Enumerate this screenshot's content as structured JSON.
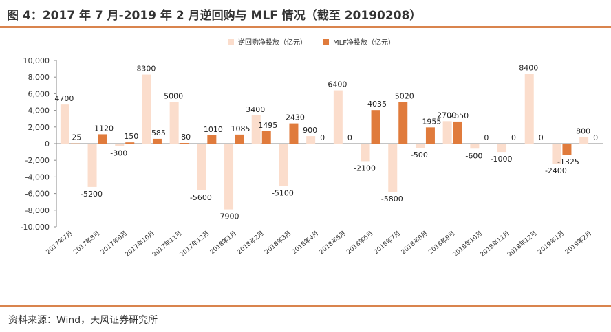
{
  "header": {
    "title": "图 4：2017 年 7 月-2019 年 2 月逆回购与 MLF 情况（截至 20190208）"
  },
  "footer": {
    "source": "资料来源：Wind，天风证券研究所"
  },
  "colors": {
    "accent": "#d9844e",
    "series1": "#fbddcc",
    "series2": "#e07b3c"
  },
  "chart_data": {
    "type": "bar",
    "title": "",
    "xlabel": "",
    "ylabel": "",
    "ylim": [
      -10000,
      10000
    ],
    "yticks": [
      "10,000",
      "8,000",
      "6,000",
      "4,000",
      "2,000",
      "0",
      "-2,000",
      "-4,000",
      "-6,000",
      "-8,000",
      "-10,000"
    ],
    "ytick_values": [
      10000,
      8000,
      6000,
      4000,
      2000,
      0,
      -2000,
      -4000,
      -6000,
      -8000,
      -10000
    ],
    "legend_position": "top",
    "categories": [
      "2017年7月",
      "2017年8月",
      "2017年9月",
      "2017年10月",
      "2017年11月",
      "2017年12月",
      "2018年1月",
      "2018年2月",
      "2018年3月",
      "2018年4月",
      "2018年5月",
      "2018年6月",
      "2018年7月",
      "2018年8月",
      "2018年9月",
      "2018年10月",
      "2018年11月",
      "2018年12月",
      "2019年1月",
      "2019年2月"
    ],
    "series": [
      {
        "name": "逆回购净投放（亿元）",
        "values": [
          4700,
          -5200,
          -300,
          8300,
          5000,
          -5600,
          -7900,
          3400,
          -5100,
          900,
          6400,
          -2100,
          -5800,
          -500,
          2700,
          -600,
          -1000,
          8400,
          -2400,
          800
        ]
      },
      {
        "name": "MLF净投放（亿元）",
        "values": [
          25,
          1120,
          150,
          585,
          80,
          1010,
          1085,
          1495,
          2430,
          0,
          0,
          4035,
          5020,
          1955,
          2650,
          0,
          0,
          0,
          -1325,
          0
        ]
      }
    ]
  }
}
